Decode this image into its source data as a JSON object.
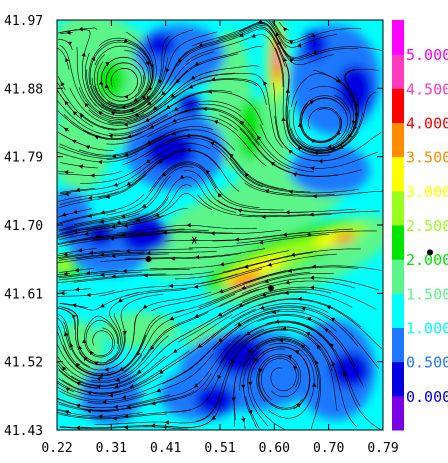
{
  "chart_data": {
    "type": "heatmap",
    "title": "",
    "xlabel": "",
    "ylabel": "",
    "xlim": [
      0.22,
      0.79
    ],
    "ylim": [
      41.43,
      41.97
    ],
    "x_ticks": [
      "0.22",
      "0.31",
      "0.41",
      "0.51",
      "0.60",
      "0.70",
      "0.79"
    ],
    "y_ticks": [
      "41.97",
      "41.88",
      "41.79",
      "41.70",
      "41.61",
      "41.52",
      "41.43"
    ],
    "colorbar": {
      "range": [
        -0.5,
        5.5
      ],
      "labels": [
        "0.000",
        "0.500",
        "1.000",
        "1.500",
        "2.000",
        "2.500",
        "3.000",
        "3.500",
        "4.000",
        "4.500",
        "5.000"
      ],
      "label_values": [
        0,
        0.5,
        1,
        1.5,
        2,
        2.5,
        3,
        3.5,
        4,
        4.5,
        5
      ],
      "colors": [
        "#7b00e6",
        "#0000e0",
        "#1e78ff",
        "#00ffff",
        "#5bf58a",
        "#00e600",
        "#9bff1e",
        "#ffff00",
        "#ff8c00",
        "#ff0000",
        "#ff3cbe",
        "#ff00ff"
      ],
      "marker_value": 2.1
    },
    "points": [
      {
        "x": 0.38,
        "y": 41.655,
        "symbol": "dot"
      },
      {
        "x": 0.594,
        "y": 41.617,
        "symbol": "dot"
      },
      {
        "x": 0.46,
        "y": 41.68,
        "symbol": "asterisk"
      }
    ],
    "overlay": "streamlines"
  }
}
